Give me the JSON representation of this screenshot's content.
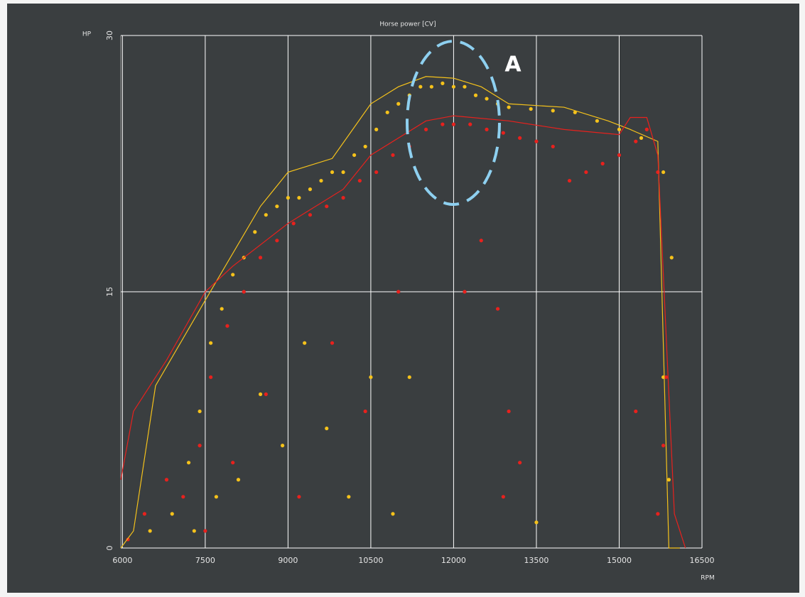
{
  "chart_data": {
    "type": "scatter",
    "title": "Horse power [CV]",
    "y_label": "HP",
    "x_label": "RPM",
    "annotation": "A",
    "xlim": [
      5970,
      16500
    ],
    "ylim": [
      0,
      30
    ],
    "xticks": [
      6000,
      7500,
      9000,
      10500,
      12000,
      13500,
      15000,
      16500
    ],
    "yticks": [
      0,
      15,
      30
    ],
    "grid": true,
    "series": [
      {
        "color": "#f5c21b",
        "style": "points",
        "x": [
          6500,
          6900,
          7200,
          7400,
          7600,
          7800,
          8000,
          8200,
          8400,
          8600,
          8800,
          9000,
          9200,
          9400,
          9600,
          9800,
          10000,
          10200,
          10400,
          10600,
          10800,
          11000,
          11200,
          11400,
          11600,
          11800,
          12000,
          12200,
          12400,
          12600,
          12800,
          13000,
          13400,
          13800,
          14200,
          14600,
          15000,
          15400,
          15800,
          15950,
          7300,
          7700,
          8100,
          8500,
          8900,
          9300,
          9700,
          10100,
          10500,
          10900,
          11200,
          13500,
          15800,
          15900
        ],
        "values": [
          1,
          2,
          5,
          8,
          12,
          14,
          16,
          17,
          18.5,
          19.5,
          20,
          20.5,
          20.5,
          21,
          21.5,
          22,
          22,
          23,
          23.5,
          24.5,
          25.5,
          26,
          26.5,
          27,
          27,
          27.2,
          27,
          27,
          26.5,
          26.3,
          26,
          25.8,
          25.7,
          25.6,
          25.5,
          25,
          24.5,
          24,
          22,
          17,
          1,
          3,
          4,
          9,
          6,
          12,
          7,
          3,
          10,
          2,
          10,
          1.5,
          10,
          4
        ]
      },
      {
        "color": "#e8211d",
        "style": "points",
        "x": [
          6100,
          6400,
          6800,
          7100,
          7400,
          7600,
          7900,
          8200,
          8500,
          8800,
          9100,
          9400,
          9700,
          10000,
          10300,
          10600,
          10900,
          11200,
          11500,
          11800,
          12000,
          12300,
          12600,
          12900,
          13200,
          13500,
          13800,
          14100,
          14400,
          14700,
          15000,
          15300,
          15500,
          15700,
          15850,
          12200,
          12500,
          12800,
          13000,
          12900,
          13200,
          15300,
          15700,
          15800,
          7500,
          8000,
          8600,
          9200,
          9800,
          10400,
          11000
        ],
        "values": [
          0.5,
          2,
          4,
          3,
          6,
          10,
          13,
          15,
          17,
          18,
          19,
          19.5,
          20,
          20.5,
          21.5,
          22,
          23,
          23.5,
          24.5,
          24.8,
          24.8,
          24.8,
          24.5,
          24.3,
          24,
          23.8,
          23.5,
          21.5,
          22,
          22.5,
          23,
          23.8,
          24.5,
          22,
          10,
          15,
          18,
          14,
          8,
          3,
          5,
          8,
          2,
          6,
          1,
          5,
          9,
          3,
          12,
          8,
          15
        ]
      },
      {
        "color": "#f5c21b",
        "style": "line",
        "x": [
          5970,
          6200,
          6600,
          7500,
          8500,
          9000,
          9800,
          10500,
          11000,
          11500,
          12000,
          12500,
          13000,
          14000,
          14800,
          15200,
          15700,
          15900,
          16100
        ],
        "values": [
          0,
          1,
          9.5,
          14.5,
          20,
          22,
          22.8,
          26,
          27,
          27.6,
          27.5,
          27,
          26,
          25.8,
          25,
          24.5,
          23.8,
          0,
          0
        ]
      },
      {
        "color": "#e8211d",
        "style": "line",
        "x": [
          5970,
          6200,
          6800,
          7500,
          8000,
          9000,
          10000,
          10500,
          11500,
          12000,
          13000,
          14000,
          15000,
          15200,
          15500,
          15700,
          16000,
          16200
        ],
        "values": [
          4,
          8,
          11,
          15,
          16.5,
          19,
          21,
          23,
          25,
          25.3,
          25,
          24.5,
          24.2,
          25.2,
          25.2,
          23,
          2,
          0
        ]
      }
    ]
  }
}
